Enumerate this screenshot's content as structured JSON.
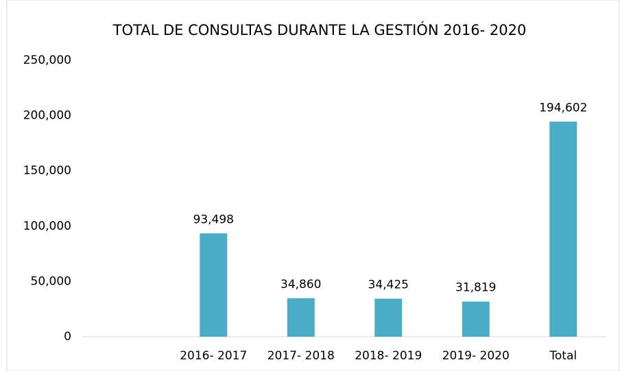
{
  "chart_data": {
    "type": "bar",
    "title": "TOTAL DE CONSULTAS DURANTE LA GESTIÓN 2016- 2020",
    "categories": [
      null,
      "2016- 2017",
      "2017- 2018",
      "2018- 2019",
      "2019- 2020",
      "Total"
    ],
    "values": [
      null,
      93498,
      34860,
      34425,
      31819,
      194602
    ],
    "value_labels": [
      null,
      "93,498",
      "34,860",
      "34,425",
      "31,819",
      "194,602"
    ],
    "color": "#4bacc6",
    "ylim": [
      0,
      250000
    ],
    "yticks": [
      0,
      {
        "value": 50000,
        "label": "50,000"
      },
      {
        "value": 100000,
        "label": "100,000"
      },
      {
        "value": 150000,
        "label": "150,000"
      },
      {
        "value": 200000,
        "label": "200,000"
      },
      {
        "value": 250000,
        "label": "250,000"
      }
    ],
    "grid": false
  }
}
